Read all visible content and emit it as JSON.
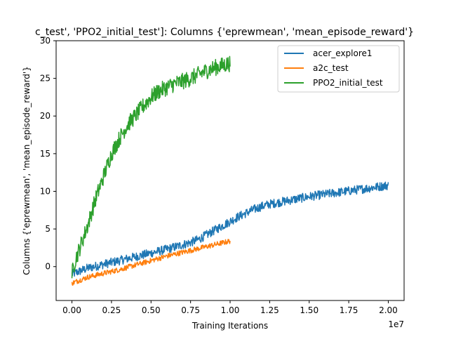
{
  "chart_data": {
    "type": "line",
    "title": "c_test', 'PPO2_initial_test']: Columns {'eprewmean', 'mean_episode_reward'}",
    "xlabel": "Training Iterations",
    "ylabel": "Columns {'eprewmean', 'mean_episode_reward'}",
    "x_offset_text": "1e7",
    "xlim": [
      -0.1,
      2.1
    ],
    "ylim": [
      -4.5,
      30
    ],
    "x_ticks": [
      0.0,
      0.25,
      0.5,
      0.75,
      1.0,
      1.25,
      1.5,
      1.75,
      2.0
    ],
    "x_tick_labels": [
      "0.00",
      "0.25",
      "0.50",
      "0.75",
      "1.00",
      "1.25",
      "1.50",
      "1.75",
      "2.00"
    ],
    "y_ticks": [
      0,
      5,
      10,
      15,
      20,
      25,
      30
    ],
    "y_tick_labels": [
      "0",
      "5",
      "10",
      "15",
      "20",
      "25",
      "30"
    ],
    "grid": false,
    "legend_position": "top-right",
    "series": [
      {
        "name": "acer_explore1",
        "color": "#1f77b4",
        "noise": 0.6,
        "x": [
          0.0,
          0.05,
          0.1,
          0.2,
          0.3,
          0.4,
          0.5,
          0.6,
          0.7,
          0.75,
          0.8,
          0.85,
          0.9,
          0.95,
          1.0,
          1.05,
          1.1,
          1.15,
          1.2,
          1.25,
          1.3,
          1.4,
          1.5,
          1.6,
          1.7,
          1.8,
          1.9,
          2.0
        ],
        "y": [
          -1.0,
          -0.6,
          -0.2,
          0.3,
          0.8,
          1.3,
          1.8,
          2.3,
          2.9,
          3.2,
          3.6,
          4.2,
          4.8,
          5.4,
          6.0,
          6.6,
          7.1,
          7.6,
          8.0,
          8.3,
          8.5,
          8.9,
          9.3,
          9.6,
          9.9,
          10.2,
          10.5,
          10.8
        ]
      },
      {
        "name": "a2c_test",
        "color": "#ff7f0e",
        "noise": 0.35,
        "x": [
          0.0,
          0.05,
          0.1,
          0.2,
          0.3,
          0.4,
          0.5,
          0.6,
          0.7,
          0.8,
          0.9,
          1.0
        ],
        "y": [
          -2.2,
          -1.8,
          -1.4,
          -0.9,
          -0.4,
          0.2,
          0.8,
          1.4,
          1.9,
          2.4,
          2.9,
          3.4
        ]
      },
      {
        "name": "PPO2_initial_test",
        "color": "#2ca02c",
        "noise": 1.1,
        "x": [
          0.0,
          0.02,
          0.05,
          0.1,
          0.15,
          0.2,
          0.25,
          0.3,
          0.35,
          0.4,
          0.45,
          0.5,
          0.55,
          0.6,
          0.65,
          0.7,
          0.75,
          0.8,
          0.85,
          0.9,
          0.95,
          1.0
        ],
        "y": [
          -1.0,
          0.8,
          2.5,
          5.5,
          9.0,
          12.0,
          15.0,
          17.0,
          18.8,
          20.0,
          21.3,
          22.5,
          23.3,
          23.8,
          24.3,
          24.6,
          25.0,
          25.5,
          26.0,
          26.4,
          26.7,
          27.0
        ]
      }
    ]
  }
}
